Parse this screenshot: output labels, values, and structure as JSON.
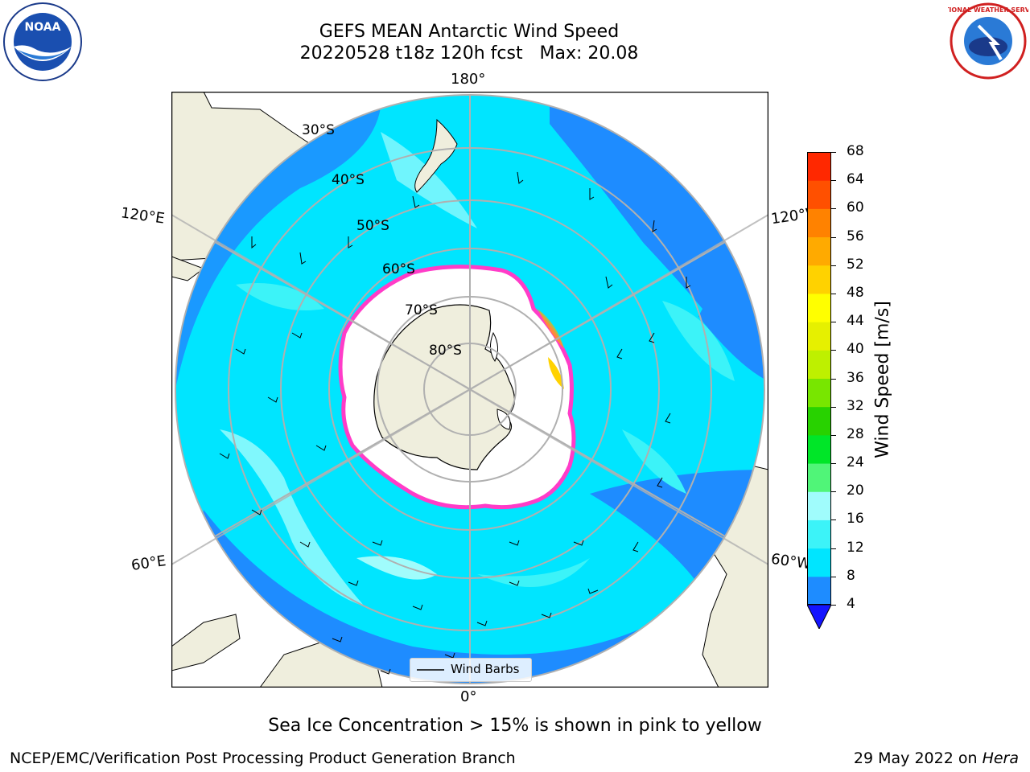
{
  "title": {
    "line1": "GEFS MEAN Antarctic Wind Speed",
    "line2": "20220528 t18z 120h fcst   Max: 20.08"
  },
  "map": {
    "projection": "south-polar-stereographic",
    "lon_labels": {
      "top": "180°",
      "bottom": "0°",
      "upper_left": "120°E",
      "upper_right": "120°W",
      "lower_left": "60°E",
      "lower_right": "60°W"
    },
    "lat_labels": [
      "30°S",
      "40°S",
      "50°S",
      "60°S",
      "70°S",
      "80°S"
    ],
    "colors": {
      "land": "#efeedd",
      "ice": "#ffffff",
      "ocean_4_8": "#1e8cff",
      "ocean_8_12": "#00e5ff",
      "ocean_12_16": "#3cf3f8",
      "ocean_16_20": "#a0fcfc",
      "below_4": "#1414ff",
      "grid": "#b0b0b0",
      "ice_edge": "#ff3cc8"
    }
  },
  "legend": {
    "label": "Wind Barbs",
    "icon": "line-icon"
  },
  "colorbar": {
    "label": "Wind Speed [m/s]",
    "ticks": [
      "4",
      "8",
      "12",
      "16",
      "20",
      "24",
      "28",
      "32",
      "36",
      "40",
      "44",
      "48",
      "52",
      "56",
      "60",
      "64",
      "68"
    ],
    "colors": [
      "#1e8cff",
      "#00e5ff",
      "#3cf3f8",
      "#a0fcfc",
      "#50f578",
      "#00e628",
      "#28d200",
      "#78e600",
      "#bef000",
      "#e6f000",
      "#ffff00",
      "#ffd200",
      "#ffaa00",
      "#ff8200",
      "#ff5000",
      "#ff2800",
      "#ff0000"
    ],
    "under_color": "#1414ff"
  },
  "caption": "Sea Ice Concentration > 15% is shown in pink to yellow",
  "footer": {
    "left": "NCEP/EMC/Verification Post Processing Product Generation Branch",
    "date": "29 May 2022 on ",
    "machine": "Hera"
  },
  "logos": {
    "left": "NOAA",
    "right": "NATIONAL WEATHER SERVICE"
  }
}
